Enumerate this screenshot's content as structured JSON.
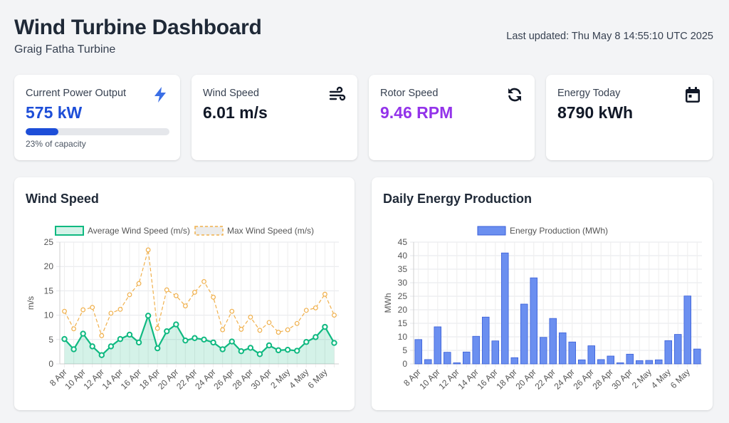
{
  "header": {
    "title": "Wind Turbine Dashboard",
    "subtitle": "Graig Fatha Turbine",
    "last_updated": "Last updated: Thu May 8 14:55:10 UTC 2025"
  },
  "stats": {
    "power": {
      "label": "Current Power Output",
      "value": "575 kW",
      "capacity_pct": 23,
      "caption": "23% of capacity",
      "color": "#1d4ed8",
      "icon": "lightning-icon"
    },
    "wind": {
      "label": "Wind Speed",
      "value": "6.01 m/s",
      "color": "#111827",
      "icon": "wind-icon"
    },
    "rotor": {
      "label": "Rotor Speed",
      "value": "9.46 RPM",
      "color": "#9333ea",
      "icon": "sync-icon"
    },
    "energy": {
      "label": "Energy Today",
      "value": "8790 kWh",
      "color": "#111827",
      "icon": "calendar-icon"
    }
  },
  "wind_panel": {
    "title": "Wind Speed"
  },
  "energy_panel": {
    "title": "Daily Energy Production"
  },
  "chart_data": [
    {
      "type": "line",
      "title": "Wind Speed",
      "xlabel": "",
      "ylabel": "m/s",
      "ylim": [
        0,
        25
      ],
      "yticks": [
        0,
        5,
        10,
        15,
        20,
        25
      ],
      "categories": [
        "8 Apr",
        "9 Apr",
        "10 Apr",
        "11 Apr",
        "12 Apr",
        "13 Apr",
        "14 Apr",
        "15 Apr",
        "16 Apr",
        "17 Apr",
        "18 Apr",
        "19 Apr",
        "20 Apr",
        "21 Apr",
        "22 Apr",
        "23 Apr",
        "24 Apr",
        "25 Apr",
        "26 Apr",
        "27 Apr",
        "28 Apr",
        "29 Apr",
        "30 Apr",
        "1 May",
        "2 May",
        "3 May",
        "4 May",
        "5 May",
        "6 May",
        "7 May"
      ],
      "tick_labels": [
        "8 Apr",
        "10 Apr",
        "12 Apr",
        "14 Apr",
        "16 Apr",
        "18 Apr",
        "20 Apr",
        "22 Apr",
        "24 Apr",
        "26 Apr",
        "28 Apr",
        "30 Apr",
        "2 May",
        "4 May",
        "6 May"
      ],
      "series": [
        {
          "name": "Average Wind Speed (m/s)",
          "color": "#10b981",
          "fill": "rgba(16,185,129,0.18)",
          "style": "solid",
          "values": [
            5.1,
            3.0,
            6.2,
            3.6,
            1.8,
            3.6,
            5.1,
            6.0,
            4.4,
            9.9,
            3.2,
            6.7,
            8.1,
            4.8,
            5.3,
            5.0,
            4.4,
            3.0,
            4.6,
            2.6,
            3.3,
            2.0,
            3.8,
            2.8,
            2.9,
            2.7,
            4.5,
            5.5,
            7.6,
            4.3
          ]
        },
        {
          "name": "Max Wind Speed (m/s)",
          "color": "#f0b04c",
          "fill": "rgba(200,200,200,0.35)",
          "style": "dashed",
          "values": [
            10.8,
            7.2,
            11.1,
            11.6,
            5.8,
            10.4,
            11.2,
            14.2,
            16.5,
            23.4,
            7.3,
            15.2,
            14.0,
            11.9,
            14.7,
            16.9,
            13.7,
            7.0,
            10.8,
            7.1,
            9.6,
            6.9,
            8.5,
            6.5,
            7.0,
            8.3,
            11.0,
            11.5,
            14.3,
            10.0
          ]
        }
      ]
    },
    {
      "type": "bar",
      "title": "Daily Energy Production",
      "xlabel": "",
      "ylabel": "MWh",
      "ylim": [
        0,
        45
      ],
      "yticks": [
        0,
        5,
        10,
        15,
        20,
        25,
        30,
        35,
        40,
        45
      ],
      "categories": [
        "8 Apr",
        "9 Apr",
        "10 Apr",
        "11 Apr",
        "12 Apr",
        "13 Apr",
        "14 Apr",
        "15 Apr",
        "16 Apr",
        "17 Apr",
        "18 Apr",
        "19 Apr",
        "20 Apr",
        "21 Apr",
        "22 Apr",
        "23 Apr",
        "24 Apr",
        "25 Apr",
        "26 Apr",
        "27 Apr",
        "28 Apr",
        "29 Apr",
        "30 Apr",
        "1 May",
        "2 May",
        "3 May",
        "4 May",
        "5 May",
        "6 May",
        "7 May"
      ],
      "tick_labels": [
        "8 Apr",
        "10 Apr",
        "12 Apr",
        "14 Apr",
        "16 Apr",
        "18 Apr",
        "20 Apr",
        "22 Apr",
        "24 Apr",
        "26 Apr",
        "28 Apr",
        "30 Apr",
        "2 May",
        "4 May",
        "6 May"
      ],
      "series": [
        {
          "name": "Energy Production (MWh)",
          "color": "#6b8ff0",
          "border": "#3a5fd8",
          "values": [
            9.0,
            1.6,
            13.7,
            4.3,
            0.4,
            4.4,
            10.2,
            17.3,
            8.5,
            41.0,
            2.3,
            22.1,
            31.8,
            9.8,
            16.8,
            11.5,
            8.1,
            1.5,
            6.7,
            1.6,
            2.9,
            0.4,
            3.6,
            1.2,
            1.3,
            1.5,
            8.6,
            10.9,
            25.1,
            5.5
          ]
        }
      ]
    }
  ]
}
